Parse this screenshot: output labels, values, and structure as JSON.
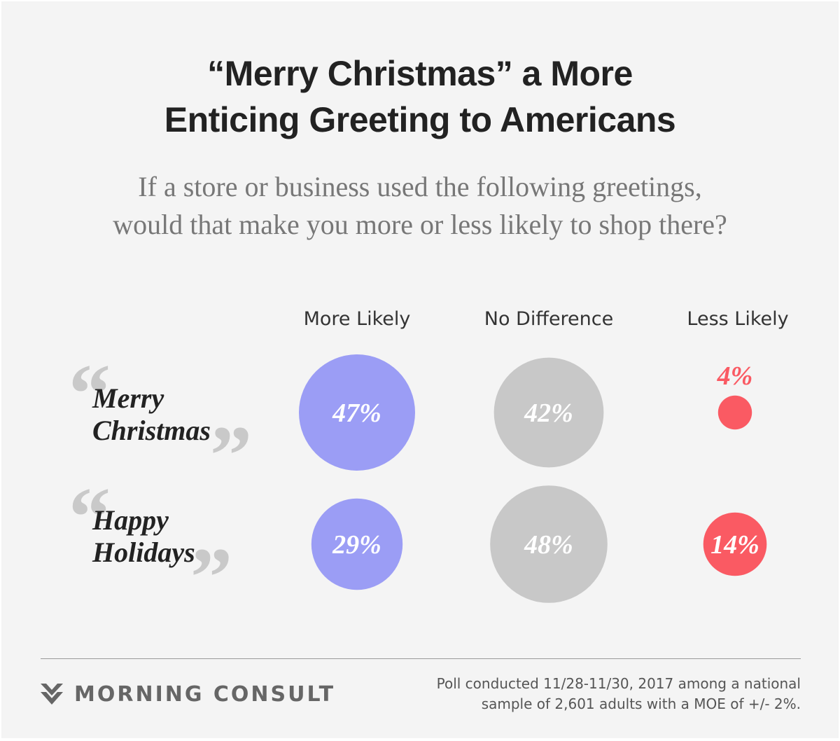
{
  "title": {
    "line1": "“Merry Christmas” a More",
    "line2": "Enticing Greeting to Americans"
  },
  "subtitle": {
    "line1": "If a store or business used the following greetings,",
    "line2": "would that make you more or less likely to shop there?"
  },
  "colors": {
    "more_likely": "#9b9df5",
    "no_difference": "#c8c8c8",
    "less_likely": "#fa5a63",
    "background": "#f4f4f4",
    "quote_marks": "#c9c9c9"
  },
  "chart_data": {
    "type": "bubble-matrix",
    "unit": "%",
    "columns": [
      "More Likely",
      "No Difference",
      "Less Likely"
    ],
    "rows": [
      {
        "label_line1": "Merry",
        "label_line2": "Christmas",
        "values": [
          47,
          42,
          4
        ]
      },
      {
        "label_line1": "Happy",
        "label_line2": "Holidays",
        "values": [
          29,
          48,
          14
        ]
      }
    ],
    "legend": "none",
    "grid": false
  },
  "footer": {
    "brand": "MORNING CONSULT",
    "note_line1": "Poll conducted 11/28-11/30, 2017 among a national",
    "note_line2": "sample of 2,601 adults with a MOE of +/- 2%.",
    "logo_icon": "morning-consult-chevron-icon"
  }
}
